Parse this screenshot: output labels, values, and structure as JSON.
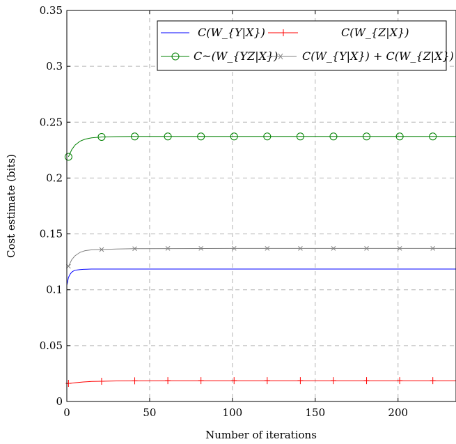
{
  "chart_data": {
    "type": "line",
    "title": "",
    "xlabel": "Number of iterations",
    "ylabel": "Cost estimate (bits)",
    "xlim": [
      0,
      235
    ],
    "ylim": [
      0,
      0.35
    ],
    "x_ticks": [
      "0",
      "50",
      "100",
      "150",
      "200"
    ],
    "y_ticks": [
      "0",
      "0.05",
      "0.1",
      "0.15",
      "0.2",
      "0.25",
      "0.3",
      "0.35"
    ],
    "grid": true,
    "legend_position": "top-right",
    "series": [
      {
        "name": "C(W_{Y|X})",
        "color": "#0000ff",
        "marker": "none",
        "x": [
          0,
          1,
          2,
          3,
          4,
          5,
          6,
          8,
          10,
          12,
          15,
          20,
          30,
          50,
          100,
          150,
          200,
          235
        ],
        "y": [
          0.104,
          0.111,
          0.114,
          0.1158,
          0.1168,
          0.1174,
          0.1177,
          0.1181,
          0.1183,
          0.1184,
          0.1185,
          0.1185,
          0.1185,
          0.1185,
          0.1185,
          0.1185,
          0.1185,
          0.1185
        ]
      },
      {
        "name": "C(W_{Z|X})",
        "color": "#ff0000",
        "marker": "plus",
        "x": [
          1,
          21,
          41,
          61,
          81,
          101,
          121,
          141,
          161,
          181,
          201,
          221
        ],
        "y": [
          0.0162,
          0.0181,
          0.0185,
          0.0186,
          0.0186,
          0.0186,
          0.0186,
          0.0186,
          0.0186,
          0.0186,
          0.0186,
          0.0186
        ],
        "line_x": [
          0,
          5,
          10,
          15,
          21,
          30,
          41,
          60,
          100,
          150,
          200,
          235
        ],
        "line_y": [
          0.016,
          0.0168,
          0.0175,
          0.0179,
          0.0181,
          0.0184,
          0.0185,
          0.0186,
          0.0186,
          0.0186,
          0.0186,
          0.0186
        ]
      },
      {
        "name": "C~(W_{YZ|X})",
        "color": "#008000",
        "marker": "circle",
        "x": [
          1,
          21,
          41,
          61,
          81,
          101,
          121,
          141,
          161,
          181,
          201,
          221
        ],
        "y": [
          0.219,
          0.2368,
          0.2372,
          0.2372,
          0.2372,
          0.2372,
          0.2372,
          0.2372,
          0.2372,
          0.2372,
          0.2372,
          0.2372
        ],
        "line_x": [
          1,
          3,
          5,
          8,
          11,
          15,
          21,
          30,
          41,
          100,
          150,
          200,
          235
        ],
        "line_y": [
          0.219,
          0.2255,
          0.2295,
          0.233,
          0.2348,
          0.236,
          0.2368,
          0.2371,
          0.2372,
          0.2372,
          0.2372,
          0.2372,
          0.2372
        ]
      },
      {
        "name": "C(W_{Y|X}) + C(W_{Z|X})",
        "color": "#808080",
        "marker": "cross",
        "x": [
          1,
          21,
          41,
          61,
          81,
          101,
          121,
          141,
          161,
          181,
          201,
          221
        ],
        "y": [
          0.121,
          0.136,
          0.1368,
          0.137,
          0.137,
          0.137,
          0.137,
          0.137,
          0.137,
          0.137,
          0.137,
          0.137
        ],
        "line_x": [
          1,
          3,
          5,
          8,
          11,
          15,
          21,
          30,
          41,
          100,
          150,
          200,
          235
        ],
        "line_y": [
          0.121,
          0.127,
          0.1305,
          0.1335,
          0.135,
          0.1358,
          0.136,
          0.1365,
          0.1368,
          0.137,
          0.137,
          0.137,
          0.137
        ]
      }
    ]
  }
}
